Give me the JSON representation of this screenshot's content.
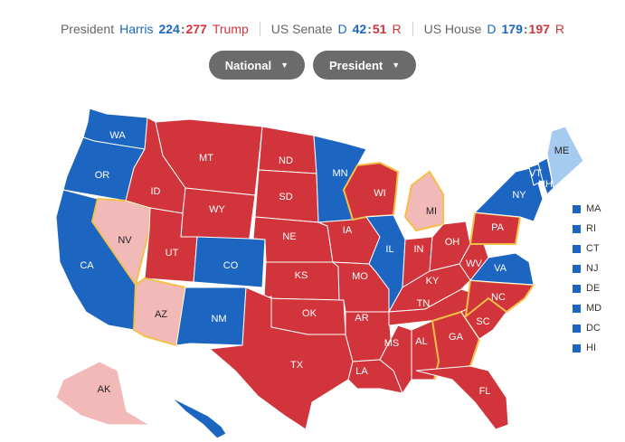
{
  "scoreboard": {
    "president": {
      "label": "President",
      "dem_name": "Harris",
      "dem_count": "224",
      "sep": ":",
      "rep_count": "277",
      "rep_name": "Trump"
    },
    "senate": {
      "label": "US Senate",
      "dem_prefix": "D",
      "dem_count": "42",
      "sep": ":",
      "rep_count": "51",
      "rep_prefix": "R"
    },
    "house": {
      "label": "US House",
      "dem_prefix": "D",
      "dem_count": "179",
      "sep": ":",
      "rep_count": "197",
      "rep_prefix": "R"
    }
  },
  "filters": {
    "scope": "National",
    "race": "President"
  },
  "colors": {
    "dem_solid": "#1c66c2",
    "rep_solid": "#d1343a",
    "dem_lean": "#a5cbf0",
    "rep_lean": "#f2b9b9",
    "swing_outline": "#f5c04a"
  },
  "states": [
    {
      "abbr": "WA",
      "party": "dem"
    },
    {
      "abbr": "OR",
      "party": "dem"
    },
    {
      "abbr": "CA",
      "party": "dem"
    },
    {
      "abbr": "NV",
      "party": "rep_lean",
      "swing": true
    },
    {
      "abbr": "ID",
      "party": "rep"
    },
    {
      "abbr": "MT",
      "party": "rep"
    },
    {
      "abbr": "WY",
      "party": "rep"
    },
    {
      "abbr": "UT",
      "party": "rep"
    },
    {
      "abbr": "AZ",
      "party": "rep_lean",
      "swing": true
    },
    {
      "abbr": "CO",
      "party": "dem"
    },
    {
      "abbr": "NM",
      "party": "dem"
    },
    {
      "abbr": "ND",
      "party": "rep"
    },
    {
      "abbr": "SD",
      "party": "rep"
    },
    {
      "abbr": "NE",
      "party": "rep"
    },
    {
      "abbr": "KS",
      "party": "rep"
    },
    {
      "abbr": "OK",
      "party": "rep"
    },
    {
      "abbr": "TX",
      "party": "rep"
    },
    {
      "abbr": "MN",
      "party": "dem"
    },
    {
      "abbr": "IA",
      "party": "rep"
    },
    {
      "abbr": "MO",
      "party": "rep"
    },
    {
      "abbr": "AR",
      "party": "rep"
    },
    {
      "abbr": "LA",
      "party": "rep"
    },
    {
      "abbr": "WI",
      "party": "rep",
      "swing": true
    },
    {
      "abbr": "MI",
      "party": "rep_lean",
      "swing": true
    },
    {
      "abbr": "IL",
      "party": "dem"
    },
    {
      "abbr": "IN",
      "party": "rep"
    },
    {
      "abbr": "OH",
      "party": "rep"
    },
    {
      "abbr": "KY",
      "party": "rep"
    },
    {
      "abbr": "TN",
      "party": "rep"
    },
    {
      "abbr": "MS",
      "party": "rep"
    },
    {
      "abbr": "AL",
      "party": "rep"
    },
    {
      "abbr": "GA",
      "party": "rep",
      "swing": true
    },
    {
      "abbr": "FL",
      "party": "rep"
    },
    {
      "abbr": "SC",
      "party": "rep"
    },
    {
      "abbr": "NC",
      "party": "rep",
      "swing": true
    },
    {
      "abbr": "VA",
      "party": "dem"
    },
    {
      "abbr": "WV",
      "party": "rep"
    },
    {
      "abbr": "PA",
      "party": "rep",
      "swing": true
    },
    {
      "abbr": "NY",
      "party": "dem"
    },
    {
      "abbr": "VT",
      "party": "dem"
    },
    {
      "abbr": "NH",
      "party": "dem"
    },
    {
      "abbr": "ME",
      "party": "dem_lean"
    },
    {
      "abbr": "AK",
      "party": "rep_lean"
    },
    {
      "abbr": "HI",
      "party": "dem"
    }
  ],
  "small_states": [
    "MA",
    "RI",
    "CT",
    "NJ",
    "DE",
    "MD",
    "DC",
    "HI"
  ]
}
